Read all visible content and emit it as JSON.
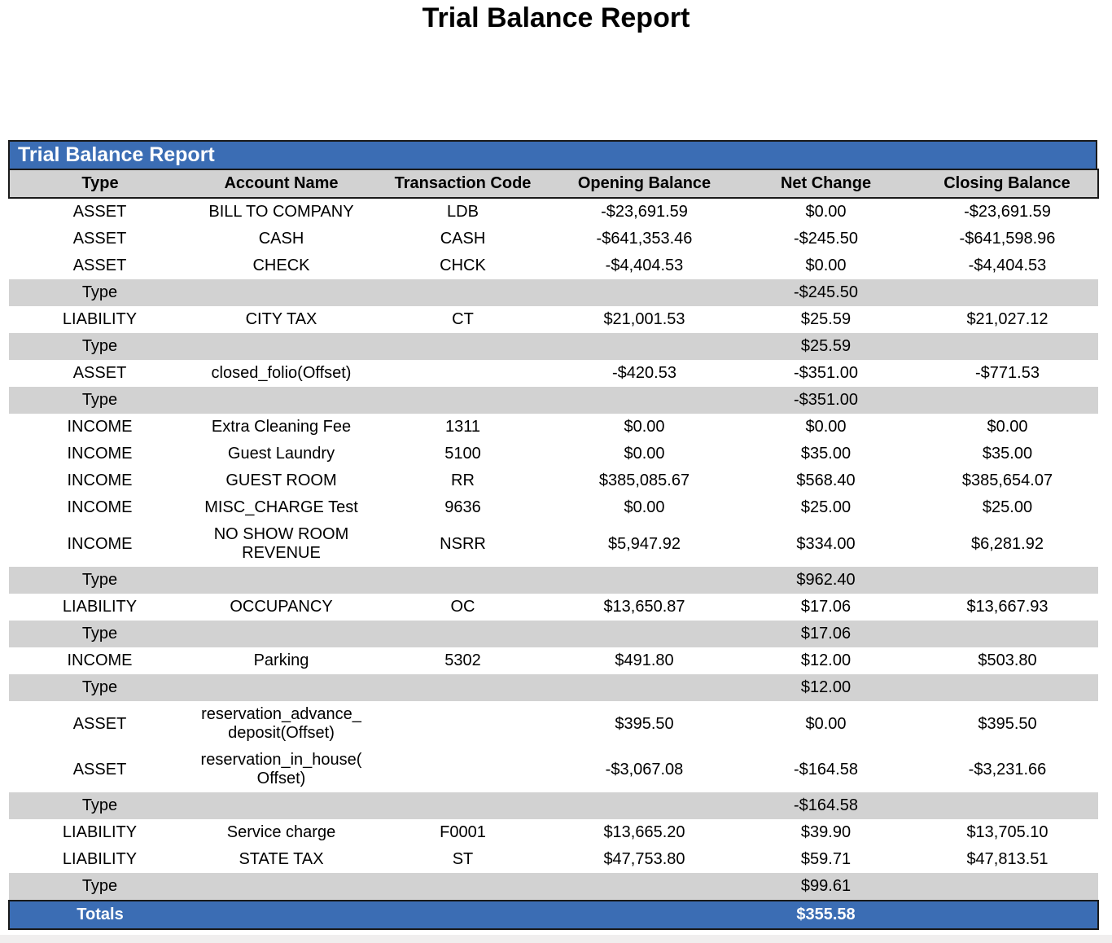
{
  "page": {
    "title": "Trial Balance Report"
  },
  "colors": {
    "accent": "#3B6DB4",
    "subtotal_gray": "#D2D2D2",
    "border": "#1a1a1a"
  },
  "table": {
    "band_title": "Trial Balance Report",
    "columns": [
      "Type",
      "Account Name",
      "Transaction Code",
      "Opening Balance",
      "Net Change",
      "Closing Balance"
    ],
    "rows": [
      {
        "kind": "data",
        "type": "ASSET",
        "account": "BILL TO COMPANY",
        "code": "LDB",
        "opening": "-$23,691.59",
        "net": "$0.00",
        "closing": "-$23,691.59"
      },
      {
        "kind": "data",
        "type": "ASSET",
        "account": "CASH",
        "code": "CASH",
        "opening": "-$641,353.46",
        "net": "-$245.50",
        "closing": "-$641,598.96"
      },
      {
        "kind": "data",
        "type": "ASSET",
        "account": "CHECK",
        "code": "CHCK",
        "opening": "-$4,404.53",
        "net": "$0.00",
        "closing": "-$4,404.53"
      },
      {
        "kind": "subtotal",
        "type": "Type",
        "net": "-$245.50"
      },
      {
        "kind": "data",
        "type": "LIABILITY",
        "account": "CITY TAX",
        "code": "CT",
        "opening": "$21,001.53",
        "net": "$25.59",
        "closing": "$21,027.12"
      },
      {
        "kind": "subtotal",
        "type": "Type",
        "net": "$25.59"
      },
      {
        "kind": "data",
        "type": "ASSET",
        "account": "closed_folio(Offset)",
        "code": "",
        "opening": "-$420.53",
        "net": "-$351.00",
        "closing": "-$771.53"
      },
      {
        "kind": "subtotal",
        "type": "Type",
        "net": "-$351.00"
      },
      {
        "kind": "data",
        "type": "INCOME",
        "account": "Extra Cleaning Fee",
        "code": "1311",
        "opening": "$0.00",
        "net": "$0.00",
        "closing": "$0.00"
      },
      {
        "kind": "data",
        "type": "INCOME",
        "account": "Guest Laundry",
        "code": "5100",
        "opening": "$0.00",
        "net": "$35.00",
        "closing": "$35.00"
      },
      {
        "kind": "data",
        "type": "INCOME",
        "account": "GUEST ROOM",
        "code": "RR",
        "opening": "$385,085.67",
        "net": "$568.40",
        "closing": "$385,654.07"
      },
      {
        "kind": "data",
        "type": "INCOME",
        "account": "MISC_CHARGE Test",
        "code": "9636",
        "opening": "$0.00",
        "net": "$25.00",
        "closing": "$25.00"
      },
      {
        "kind": "data",
        "type": "INCOME",
        "account": "NO SHOW ROOM REVENUE",
        "code": "NSRR",
        "opening": "$5,947.92",
        "net": "$334.00",
        "closing": "$6,281.92"
      },
      {
        "kind": "subtotal",
        "type": "Type",
        "net": "$962.40"
      },
      {
        "kind": "data",
        "type": "LIABILITY",
        "account": "OCCUPANCY",
        "code": "OC",
        "opening": "$13,650.87",
        "net": "$17.06",
        "closing": "$13,667.93"
      },
      {
        "kind": "subtotal",
        "type": "Type",
        "net": "$17.06"
      },
      {
        "kind": "data",
        "type": "INCOME",
        "account": "Parking",
        "code": "5302",
        "opening": "$491.80",
        "net": "$12.00",
        "closing": "$503.80"
      },
      {
        "kind": "subtotal",
        "type": "Type",
        "net": "$12.00"
      },
      {
        "kind": "data",
        "type": "ASSET",
        "account": "reservation_advance_deposit(Offset)",
        "code": "",
        "opening": "$395.50",
        "net": "$0.00",
        "closing": "$395.50"
      },
      {
        "kind": "data",
        "type": "ASSET",
        "account": "reservation_in_house(Offset)",
        "code": "",
        "opening": "-$3,067.08",
        "net": "-$164.58",
        "closing": "-$3,231.66"
      },
      {
        "kind": "subtotal",
        "type": "Type",
        "net": "-$164.58"
      },
      {
        "kind": "data",
        "type": "LIABILITY",
        "account": "Service charge",
        "code": "F0001",
        "opening": "$13,665.20",
        "net": "$39.90",
        "closing": "$13,705.10"
      },
      {
        "kind": "data",
        "type": "LIABILITY",
        "account": "STATE TAX",
        "code": "ST",
        "opening": "$47,753.80",
        "net": "$59.71",
        "closing": "$47,813.51"
      },
      {
        "kind": "subtotal",
        "type": "Type",
        "net": "$99.61"
      }
    ],
    "totals": {
      "label": "Totals",
      "net": "$355.58"
    }
  }
}
